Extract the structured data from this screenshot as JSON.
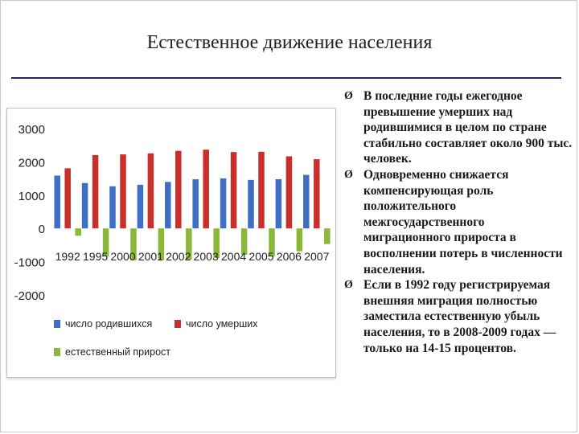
{
  "slide": {
    "title": "Естественное движение населения"
  },
  "bullets": [
    {
      "marker": "Ø",
      "text": "В последние годы ежегодное превышение умерших над родившимися в целом по стране стабильно составляет около 900 тыс. человек."
    },
    {
      "marker": "Ø",
      "text": "Одновременно снижается компенсирующая роль положительного межгосударственного миграционного прироста в восполнении потерь в численности населения."
    },
    {
      "marker": "Ø",
      "text": "Если в 1992 году регистрируемая внешняя миграция полностью заместила естественную убыль населения, то в 2008-2009 годах — только на 14-15 процентов."
    }
  ],
  "chart_data": {
    "type": "bar",
    "categories": [
      "1992",
      "1995",
      "2000",
      "2001",
      "2002",
      "2003",
      "2004",
      "2005",
      "2006",
      "2007"
    ],
    "series": [
      {
        "name": "число родившихся",
        "color": "#3f6fc4",
        "values": [
          1587,
          1364,
          1267,
          1311,
          1397,
          1477,
          1502,
          1457,
          1480,
          1610
        ]
      },
      {
        "name": "число умерших",
        "color": "#c9302c",
        "values": [
          1807,
          2204,
          2225,
          2255,
          2332,
          2366,
          2295,
          2304,
          2167,
          2080
        ]
      },
      {
        "name": "естественный прирост",
        "color": "#8ab83a",
        "values": [
          -220,
          -840,
          -958,
          -944,
          -935,
          -889,
          -793,
          -847,
          -687,
          -470
        ]
      }
    ],
    "yticks": [
      "3000",
      "2000",
      "1000",
      "0",
      "-1000",
      "-2000"
    ],
    "ylim": [
      -2000,
      3000
    ],
    "grid": false,
    "legend_position": "bottom"
  }
}
